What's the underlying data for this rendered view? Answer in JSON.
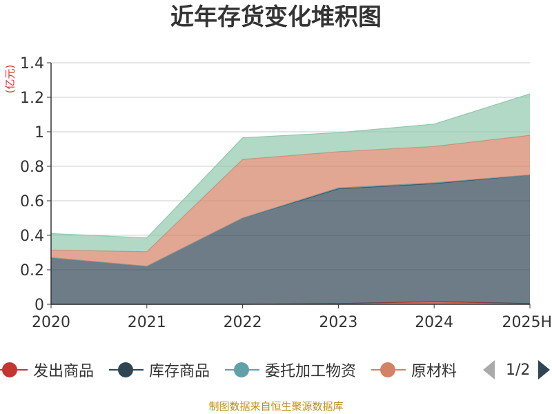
{
  "title": "近年存货变化堆积图",
  "unit_label": "(亿元)",
  "source": "制图数据来自恒生聚源数据库",
  "legend": {
    "page": "1/2",
    "visible": [
      {
        "name": "发出商品",
        "color": "#c23531"
      },
      {
        "name": "库存商品",
        "color": "#2f4554"
      },
      {
        "name": "委托加工物资",
        "color": "#61a0a8"
      },
      {
        "name": "原材料",
        "color": "#d48265"
      }
    ]
  },
  "chart_data": {
    "type": "area",
    "stacked": true,
    "categories": [
      "2020",
      "2021",
      "2022",
      "2023",
      "2024",
      "2025H"
    ],
    "ylim": [
      0,
      1.4
    ],
    "yticks": [
      "0",
      "0.2",
      "0.4",
      "0.6",
      "0.8",
      "1",
      "1.2",
      "1.4"
    ],
    "grid": true,
    "legend_position": "bottom",
    "series": [
      {
        "name": "发出商品",
        "color": "#c23531",
        "values": [
          0,
          0,
          0,
          0.005,
          0.015,
          0.005
        ]
      },
      {
        "name": "库存商品",
        "color": "#2f4554",
        "values": [
          0.27,
          0.22,
          0.5,
          0.665,
          0.685,
          0.745
        ]
      },
      {
        "name": "委托加工物资",
        "color": "#61a0a8",
        "values": [
          0,
          0,
          0,
          0.005,
          0.005,
          0
        ]
      },
      {
        "name": "原材料",
        "color": "#d48265",
        "values": [
          0.045,
          0.085,
          0.34,
          0.21,
          0.21,
          0.23
        ]
      },
      {
        "name": "",
        "color": "#91c7ae",
        "values": [
          0.095,
          0.08,
          0.125,
          0.11,
          0.13,
          0.24
        ]
      }
    ]
  }
}
